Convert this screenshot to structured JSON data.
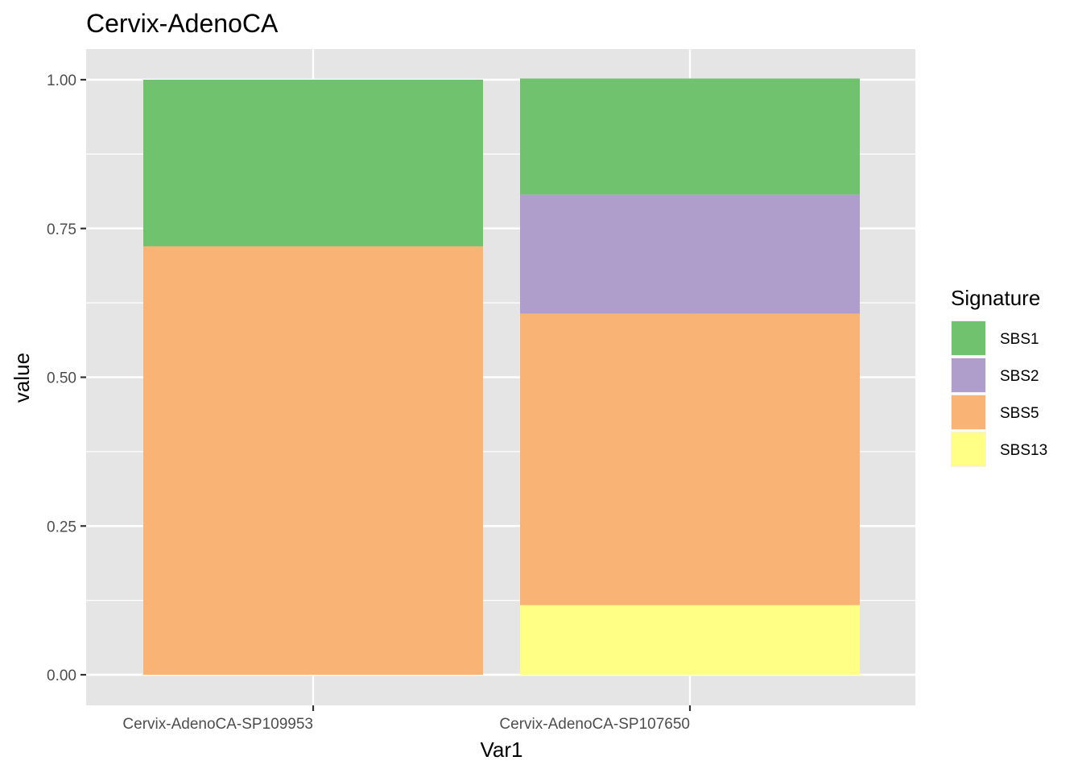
{
  "chart_data": {
    "type": "bar",
    "stacked": true,
    "title": "Cervix-AdenoCA",
    "xlabel": "Var1",
    "ylabel": "value",
    "ylim": [
      0,
      1
    ],
    "yticks": [
      "0.00",
      "0.25",
      "0.50",
      "0.75",
      "1.00"
    ],
    "grid": true,
    "legend_position": "right",
    "legend_title": "Signature",
    "categories": [
      "Cervix-AdenoCA-SP109953",
      "Cervix-AdenoCA-SP107650"
    ],
    "series": [
      {
        "name": "SBS1",
        "color": "#71C26E",
        "values": [
          0.28,
          0.195
        ]
      },
      {
        "name": "SBS2",
        "color": "#AF9DCB",
        "values": [
          0.0,
          0.2
        ]
      },
      {
        "name": "SBS5",
        "color": "#F9B475",
        "values": [
          0.72,
          0.49
        ]
      },
      {
        "name": "SBS13",
        "color": "#FFFF85",
        "values": [
          0.0,
          0.117
        ]
      }
    ],
    "panel_color": "#E5E5E5",
    "grid_color": "#FFFFFF"
  }
}
